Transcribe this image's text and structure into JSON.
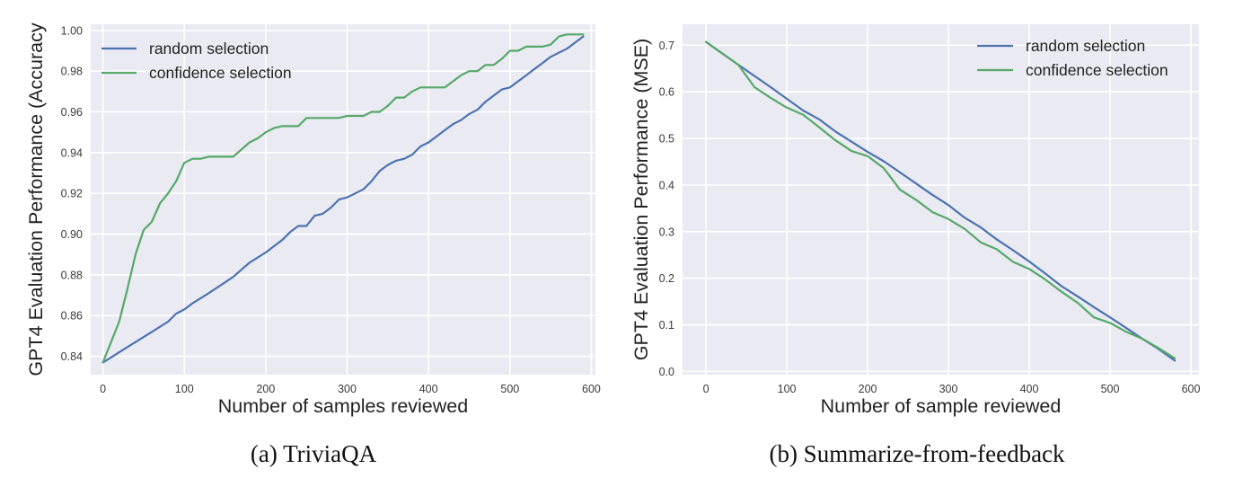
{
  "chart_data": [
    {
      "type": "line",
      "caption": "(a) TriviaQA",
      "xlabel": "Number of samples reviewed",
      "ylabel": "GPT4 Evaluation Performance (Accuracy",
      "xlim": [
        -15,
        605
      ],
      "ylim": [
        0.831,
        1.003
      ],
      "xticks": [
        0,
        100,
        200,
        300,
        400,
        500,
        600
      ],
      "yticks": [
        0.84,
        0.86,
        0.88,
        0.9,
        0.92,
        0.94,
        0.96,
        0.98,
        1.0
      ],
      "ytick_decimals": 2,
      "grid": true,
      "legend_position": "top-left",
      "series": [
        {
          "name": "random selection",
          "color": "#4c72b0",
          "x": [
            0,
            20,
            40,
            60,
            80,
            90,
            100,
            110,
            130,
            160,
            180,
            200,
            220,
            230,
            240,
            250,
            260,
            270,
            280,
            290,
            300,
            320,
            330,
            340,
            350,
            360,
            370,
            380,
            390,
            400,
            410,
            420,
            430,
            440,
            450,
            460,
            470,
            480,
            490,
            500,
            510,
            520,
            530,
            540,
            550,
            560,
            570,
            580,
            590
          ],
          "y": [
            0.837,
            0.842,
            0.847,
            0.852,
            0.857,
            0.861,
            0.863,
            0.866,
            0.871,
            0.879,
            0.886,
            0.891,
            0.897,
            0.901,
            0.904,
            0.904,
            0.909,
            0.91,
            0.913,
            0.917,
            0.918,
            0.922,
            0.926,
            0.931,
            0.934,
            0.936,
            0.937,
            0.939,
            0.943,
            0.945,
            0.948,
            0.951,
            0.954,
            0.956,
            0.959,
            0.961,
            0.965,
            0.968,
            0.971,
            0.972,
            0.975,
            0.978,
            0.981,
            0.984,
            0.987,
            0.989,
            0.991,
            0.994,
            0.997
          ]
        },
        {
          "name": "confidence selection",
          "color": "#55a868",
          "x": [
            0,
            20,
            30,
            40,
            50,
            60,
            70,
            80,
            90,
            100,
            110,
            120,
            130,
            140,
            150,
            160,
            180,
            190,
            200,
            210,
            220,
            230,
            240,
            250,
            260,
            280,
            290,
            300,
            310,
            320,
            330,
            340,
            350,
            360,
            370,
            380,
            390,
            400,
            410,
            420,
            430,
            440,
            450,
            460,
            470,
            480,
            490,
            500,
            510,
            520,
            530,
            540,
            550,
            560,
            570,
            580,
            590
          ],
          "y": [
            0.837,
            0.857,
            0.873,
            0.89,
            0.902,
            0.906,
            0.915,
            0.92,
            0.926,
            0.935,
            0.937,
            0.937,
            0.938,
            0.938,
            0.938,
            0.938,
            0.945,
            0.947,
            0.95,
            0.952,
            0.953,
            0.953,
            0.953,
            0.957,
            0.957,
            0.957,
            0.957,
            0.958,
            0.958,
            0.958,
            0.96,
            0.96,
            0.963,
            0.967,
            0.967,
            0.97,
            0.972,
            0.972,
            0.972,
            0.972,
            0.975,
            0.978,
            0.98,
            0.98,
            0.983,
            0.983,
            0.986,
            0.99,
            0.99,
            0.992,
            0.992,
            0.992,
            0.993,
            0.997,
            0.998,
            0.998,
            0.998
          ]
        }
      ]
    },
    {
      "type": "line",
      "caption": "(b) Summarize-from-feedback",
      "xlabel": "Number of sample reviewed",
      "ylabel": "GPT4 Evaluation Performance (MSE)",
      "xlim": [
        -29,
        610
      ],
      "ylim": [
        -0.007,
        0.745
      ],
      "xticks": [
        0,
        100,
        200,
        300,
        400,
        500,
        600
      ],
      "yticks": [
        0.0,
        0.1,
        0.2,
        0.3,
        0.4,
        0.5,
        0.6,
        0.7
      ],
      "ytick_decimals": 1,
      "grid": true,
      "legend_position": "top-right",
      "series": [
        {
          "name": "random selection",
          "color": "#4c72b0",
          "x": [
            0,
            40,
            80,
            120,
            140,
            160,
            200,
            220,
            240,
            280,
            300,
            320,
            340,
            360,
            380,
            400,
            420,
            440,
            460,
            480,
            500,
            520,
            540,
            560,
            580
          ],
          "y": [
            0.707,
            0.658,
            0.61,
            0.56,
            0.541,
            0.515,
            0.471,
            0.451,
            0.427,
            0.379,
            0.357,
            0.33,
            0.309,
            0.283,
            0.26,
            0.236,
            0.21,
            0.183,
            0.161,
            0.138,
            0.116,
            0.093,
            0.07,
            0.048,
            0.023
          ]
        },
        {
          "name": "confidence selection",
          "color": "#55a868",
          "x": [
            0,
            40,
            60,
            80,
            100,
            120,
            140,
            160,
            180,
            200,
            220,
            240,
            260,
            280,
            300,
            320,
            340,
            360,
            380,
            400,
            420,
            440,
            460,
            480,
            500,
            520,
            540,
            560,
            580
          ],
          "y": [
            0.707,
            0.658,
            0.61,
            0.587,
            0.566,
            0.551,
            0.524,
            0.496,
            0.473,
            0.462,
            0.436,
            0.39,
            0.368,
            0.342,
            0.327,
            0.306,
            0.277,
            0.262,
            0.235,
            0.22,
            0.197,
            0.171,
            0.147,
            0.116,
            0.104,
            0.085,
            0.07,
            0.05,
            0.028
          ]
        }
      ]
    }
  ]
}
